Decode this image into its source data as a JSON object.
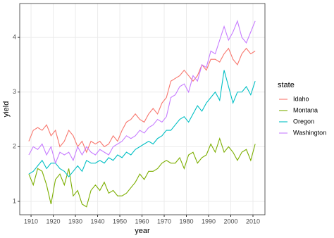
{
  "chart_data": {
    "type": "line",
    "x_label": "year",
    "y_label": "yield",
    "legend_title": "state",
    "legend_position": "right",
    "grid": true,
    "x": [
      1909,
      1911,
      1913,
      1915,
      1917,
      1919,
      1921,
      1923,
      1925,
      1927,
      1929,
      1931,
      1933,
      1935,
      1937,
      1939,
      1941,
      1943,
      1945,
      1947,
      1949,
      1951,
      1953,
      1955,
      1957,
      1959,
      1961,
      1963,
      1965,
      1967,
      1969,
      1971,
      1973,
      1975,
      1977,
      1979,
      1981,
      1983,
      1985,
      1987,
      1989,
      1991,
      1993,
      1995,
      1997,
      1999,
      2001,
      2003,
      2005,
      2007,
      2009,
      2011
    ],
    "series": [
      {
        "name": "Idaho",
        "color": "#F8766D",
        "values": [
          2.1,
          2.3,
          2.35,
          2.3,
          2.4,
          2.2,
          2.3,
          2.0,
          2.1,
          2.3,
          2.2,
          2.0,
          2.1,
          1.9,
          2.1,
          2.05,
          2.1,
          2.0,
          2.05,
          2.2,
          2.1,
          2.3,
          2.45,
          2.5,
          2.6,
          2.5,
          2.45,
          2.6,
          2.7,
          2.6,
          2.8,
          2.9,
          3.2,
          3.25,
          3.3,
          3.4,
          3.3,
          3.2,
          3.3,
          3.5,
          3.4,
          3.6,
          3.6,
          3.55,
          3.7,
          3.8,
          3.6,
          3.5,
          3.7,
          3.8,
          3.7,
          3.75
        ]
      },
      {
        "name": "Montana",
        "color": "#7CAE00",
        "values": [
          1.5,
          1.3,
          1.6,
          1.55,
          1.3,
          0.95,
          1.4,
          1.5,
          1.3,
          1.6,
          1.1,
          1.2,
          0.95,
          0.9,
          1.2,
          1.3,
          1.2,
          1.35,
          1.15,
          1.2,
          1.1,
          1.1,
          1.15,
          1.25,
          1.35,
          1.5,
          1.4,
          1.55,
          1.55,
          1.6,
          1.7,
          1.75,
          1.7,
          1.7,
          1.8,
          1.6,
          1.85,
          1.9,
          1.7,
          1.8,
          1.85,
          2.05,
          1.9,
          2.15,
          1.9,
          2.0,
          1.9,
          1.75,
          1.9,
          1.95,
          1.75,
          2.05
        ]
      },
      {
        "name": "Oregon",
        "color": "#00BFC4",
        "values": [
          1.5,
          1.55,
          1.65,
          1.75,
          1.6,
          1.7,
          1.7,
          1.6,
          1.55,
          1.45,
          1.55,
          1.65,
          1.55,
          1.75,
          1.7,
          1.7,
          1.75,
          1.7,
          1.8,
          1.75,
          1.85,
          1.8,
          1.9,
          1.85,
          1.95,
          2.0,
          2.05,
          2.1,
          2.05,
          2.15,
          2.2,
          2.3,
          2.3,
          2.4,
          2.5,
          2.55,
          2.45,
          2.6,
          2.75,
          2.65,
          2.8,
          2.9,
          3.0,
          2.85,
          3.4,
          3.1,
          2.8,
          3.0,
          3.0,
          3.1,
          2.95,
          3.2
        ]
      },
      {
        "name": "Washington",
        "color": "#C77CFF",
        "values": [
          1.85,
          2.0,
          1.95,
          2.05,
          1.85,
          2.0,
          1.7,
          1.9,
          1.85,
          1.9,
          1.75,
          2.0,
          1.85,
          2.0,
          1.9,
          1.85,
          1.95,
          1.9,
          1.85,
          2.0,
          2.05,
          2.1,
          2.2,
          2.15,
          2.2,
          2.3,
          2.25,
          2.35,
          2.4,
          2.5,
          2.45,
          2.55,
          2.9,
          2.95,
          3.1,
          3.15,
          3.0,
          3.3,
          3.2,
          3.5,
          3.45,
          3.75,
          3.7,
          3.95,
          4.2,
          3.95,
          4.1,
          4.3,
          4.0,
          3.9,
          4.1,
          4.3
        ]
      }
    ],
    "xlim": [
      1904.9,
      2015.4
    ],
    "xticks": [
      1910,
      1920,
      1930,
      1940,
      1950,
      1960,
      1970,
      1980,
      1990,
      2000,
      2010
    ],
    "ylim": [
      0.755,
      4.62
    ],
    "yticks": [
      1,
      2,
      3,
      4
    ]
  }
}
